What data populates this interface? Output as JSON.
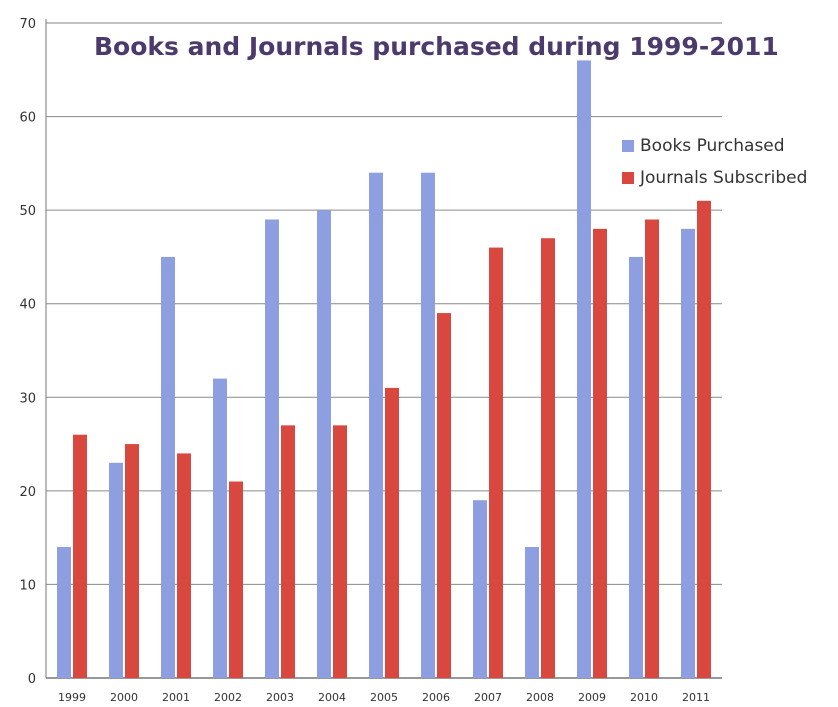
{
  "chart_data": {
    "type": "bar",
    "title": "Books and Journals purchased during 1999-2011",
    "xlabel": "",
    "ylabel": "",
    "ylim": [
      0,
      70
    ],
    "yticks": [
      0,
      10,
      20,
      30,
      40,
      50,
      60,
      70
    ],
    "grid": true,
    "legend_position": "right",
    "categories": [
      "1999",
      "2000",
      "2001",
      "2002",
      "2003",
      "2004",
      "2005",
      "2006",
      "2007",
      "2008",
      "2009",
      "2010",
      "2011"
    ],
    "series": [
      {
        "name": "Books Purchased",
        "color": "#8d9fe0",
        "values": [
          14,
          23,
          45,
          32,
          49,
          50,
          54,
          54,
          19,
          14,
          66,
          45,
          48
        ]
      },
      {
        "name": "Journals Subscribed",
        "color": "#d8483f",
        "values": [
          26,
          25,
          24,
          21,
          27,
          27,
          31,
          39,
          46,
          47,
          48,
          49,
          51
        ]
      }
    ]
  }
}
